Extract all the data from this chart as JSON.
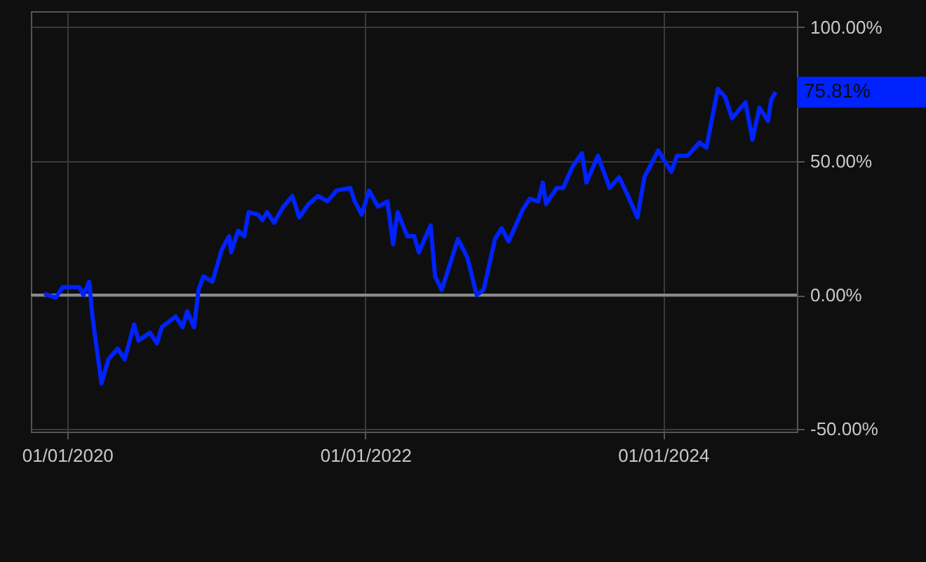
{
  "chart_data": {
    "type": "line",
    "x": [
      "2019-11-06",
      "2019-12-04",
      "2019-12-21",
      "2020-01-30",
      "2020-02-10",
      "2020-02-24",
      "2020-03-03",
      "2020-03-25",
      "2020-04-11",
      "2020-05-04",
      "2020-05-21",
      "2020-06-13",
      "2020-06-24",
      "2020-07-22",
      "2020-08-08",
      "2020-08-20",
      "2020-09-23",
      "2020-10-10",
      "2020-10-21",
      "2020-11-07",
      "2020-11-18",
      "2020-11-30",
      "2020-12-22",
      "2021-01-14",
      "2021-02-01",
      "2021-02-06",
      "2021-02-23",
      "2021-03-10",
      "2021-03-21",
      "2021-04-13",
      "2021-04-24",
      "2021-05-05",
      "2021-05-22",
      "2021-06-14",
      "2021-07-06",
      "2021-07-23",
      "2021-08-15",
      "2021-09-07",
      "2021-09-30",
      "2021-10-22",
      "2021-11-25",
      "2021-12-06",
      "2021-12-23",
      "2022-01-10",
      "2022-02-01",
      "2022-02-24",
      "2022-03-10",
      "2022-03-21",
      "2022-04-14",
      "2022-05-01",
      "2022-05-12",
      "2022-06-10",
      "2022-06-21",
      "2022-07-07",
      "2022-07-18",
      "2022-08-16",
      "2022-09-08",
      "2022-10-01",
      "2022-10-18",
      "2022-11-15",
      "2022-12-01",
      "2022-12-18",
      "2023-01-22",
      "2023-02-08",
      "2023-03-01",
      "2023-03-12",
      "2023-03-20",
      "2023-04-15",
      "2023-05-01",
      "2023-05-24",
      "2023-06-16",
      "2023-06-27",
      "2023-07-25",
      "2023-08-23",
      "2023-09-15",
      "2023-10-07",
      "2023-10-30",
      "2023-11-16",
      "2023-12-20",
      "2024-01-21",
      "2024-02-04",
      "2024-03-01",
      "2024-03-30",
      "2024-04-16",
      "2024-05-14",
      "2024-06-01",
      "2024-06-18",
      "2024-07-21",
      "2024-08-07",
      "2024-08-24",
      "2024-09-14",
      "2024-09-22",
      "2024-10-03"
    ],
    "series": [
      {
        "color": "#0022ff",
        "values": [
          0.5,
          -1,
          3,
          3,
          0,
          5,
          -8,
          -33,
          -24,
          -20,
          -24,
          -11,
          -17,
          -14,
          -18,
          -12,
          -8,
          -12,
          -6,
          -12,
          2,
          7,
          5,
          17,
          22,
          16,
          24,
          22,
          31,
          30,
          28,
          31,
          27,
          33,
          37,
          29,
          34,
          37,
          35,
          39,
          40,
          35,
          30,
          39,
          33,
          35,
          19,
          31,
          22,
          22,
          16,
          26,
          7,
          2,
          7,
          21,
          14,
          0,
          2,
          21,
          25,
          20,
          32,
          36,
          35,
          42,
          34,
          40,
          40,
          48,
          53,
          42,
          52,
          40,
          44,
          37,
          29,
          44,
          54,
          46,
          52,
          52,
          57,
          55,
          77,
          74,
          66,
          72,
          58,
          70,
          65,
          73,
          75.81
        ]
      }
    ],
    "xlim": [
      "2019-10-04",
      "2024-11-24"
    ],
    "xticks": [
      {
        "value": "2020-01-01",
        "label": "01/01/2020"
      },
      {
        "value": "2022-01-01",
        "label": "01/01/2022"
      },
      {
        "value": "2024-01-01",
        "label": "01/01/2024"
      }
    ],
    "ylim": [
      -51,
      106
    ],
    "yticks": [
      {
        "value": -50,
        "label": "-50.00%"
      },
      {
        "value": 0,
        "label": "0.00%"
      },
      {
        "value": 50,
        "label": "50.00%"
      },
      {
        "value": 100,
        "label": "100.00%"
      }
    ],
    "ref_lines": [
      {
        "axis": "y",
        "value": 0,
        "color": "#8a8a8a"
      }
    ],
    "annotations": [
      "75.81%"
    ],
    "grid": true,
    "line_style": "solid",
    "marker": "none"
  }
}
